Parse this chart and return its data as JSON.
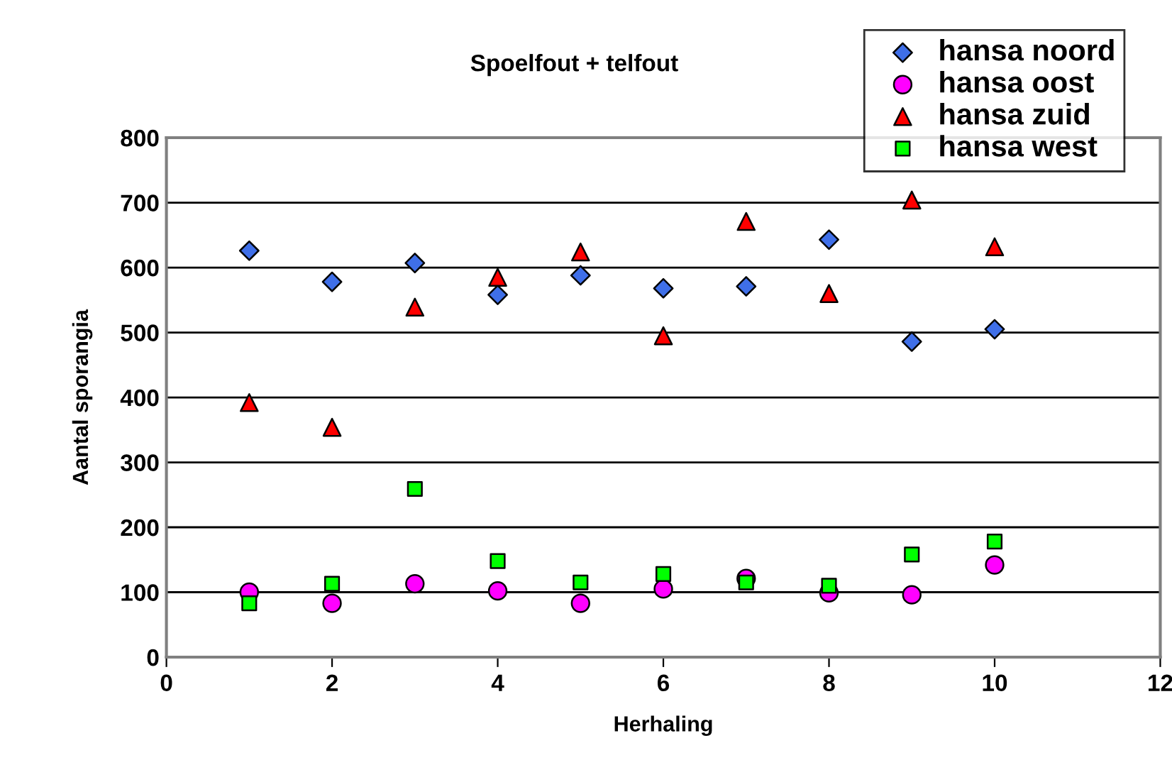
{
  "chart_data": {
    "type": "scatter",
    "title": "Spoelfout + telfout",
    "xlabel": "Herhaling",
    "ylabel": "Aantal sporangia",
    "x": [
      1,
      2,
      3,
      4,
      5,
      6,
      7,
      8,
      9,
      10
    ],
    "series": [
      {
        "name": "hansa noord",
        "color": "#3f6fe8",
        "marker": "diamond",
        "values": [
          626,
          578,
          607,
          558,
          588,
          568,
          571,
          643,
          486,
          505
        ]
      },
      {
        "name": "hansa oost",
        "color": "#ff00ff",
        "marker": "circle",
        "values": [
          100,
          83,
          113,
          102,
          83,
          105,
          121,
          99,
          96,
          142
        ]
      },
      {
        "name": "hansa zuid",
        "color": "#ff0000",
        "marker": "triangle",
        "values": [
          392,
          354,
          539,
          585,
          624,
          495,
          671,
          560,
          704,
          632
        ]
      },
      {
        "name": "hansa west",
        "color": "#00ff00",
        "marker": "square",
        "values": [
          83,
          113,
          259,
          148,
          115,
          128,
          115,
          110,
          158,
          178
        ]
      }
    ],
    "xlim": [
      0,
      12
    ],
    "xticks": [
      0,
      2,
      4,
      6,
      8,
      10,
      12
    ],
    "ylim": [
      0,
      800
    ],
    "yticks": [
      0,
      100,
      200,
      300,
      400,
      500,
      600,
      700,
      800
    ],
    "grid": "y",
    "legend": "top right"
  }
}
